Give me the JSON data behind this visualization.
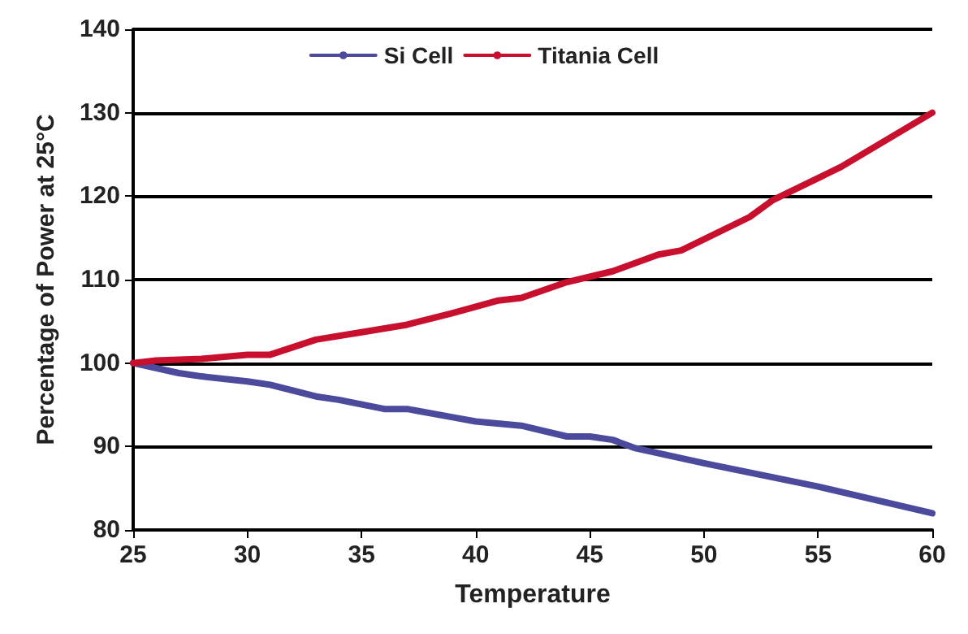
{
  "chart_data": {
    "type": "line",
    "xlabel": "Temperature",
    "ylabel": "Percentage of Power at 25°C",
    "xlim": [
      25,
      60
    ],
    "xticks": [
      25,
      30,
      35,
      40,
      45,
      50,
      55,
      60
    ],
    "ylim": [
      80,
      140
    ],
    "yticks": [
      80,
      90,
      100,
      110,
      120,
      130,
      140
    ],
    "grid": "y",
    "legend": "top",
    "marker": "none",
    "line_style": "solid",
    "series": [
      {
        "name": "Si Cell",
        "color": "#4b4a9c",
        "x": [
          25,
          27,
          28,
          30,
          31,
          33,
          34,
          36,
          37,
          39,
          40,
          42,
          44,
          45,
          46,
          47,
          50,
          55,
          60
        ],
        "values": [
          100,
          98.8,
          98.4,
          97.8,
          97.4,
          96,
          95.6,
          94.5,
          94.5,
          93.5,
          93,
          92.5,
          91.2,
          91.2,
          90.8,
          89.8,
          88,
          85.2,
          82
        ]
      },
      {
        "name": "Titania Cell",
        "color": "#c8102e",
        "x": [
          25,
          26,
          28,
          30,
          31,
          33,
          35,
          37,
          39,
          41,
          42,
          44,
          46,
          48,
          49,
          52,
          53,
          56,
          60
        ],
        "values": [
          100,
          100.3,
          100.5,
          101,
          101,
          102.8,
          103.7,
          104.6,
          106,
          107.5,
          107.8,
          109.7,
          111,
          113,
          113.5,
          117.5,
          119.5,
          123.5,
          130
        ]
      }
    ]
  }
}
